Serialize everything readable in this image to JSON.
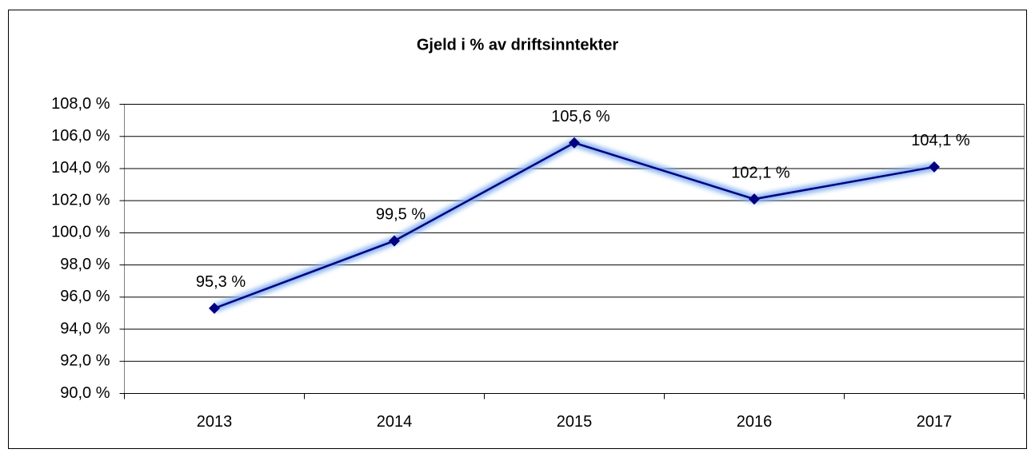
{
  "chart_data": {
    "type": "line",
    "title": "Gjeld i % av driftsinntekter",
    "categories": [
      "2013",
      "2014",
      "2015",
      "2016",
      "2017"
    ],
    "series": [
      {
        "color": "#000080",
        "values": [
          95.3,
          99.5,
          105.6,
          102.1,
          104.1
        ],
        "value_labels": [
          "95,3 %",
          "99,5 %",
          "105,6 %",
          "102,1 %",
          "104,1 %"
        ]
      }
    ],
    "ylim": [
      90,
      108
    ],
    "yticks": [
      {
        "value": 90,
        "label": "90,0 %"
      },
      {
        "value": 92,
        "label": "92,0 %"
      },
      {
        "value": 94,
        "label": "94,0 %"
      },
      {
        "value": 96,
        "label": "96,0 %"
      },
      {
        "value": 98,
        "label": "98,0 %"
      },
      {
        "value": 100,
        "label": "100,0 %"
      },
      {
        "value": 102,
        "label": "102,0 %"
      },
      {
        "value": 104,
        "label": "104,0 %"
      },
      {
        "value": 106,
        "label": "106,0 %"
      },
      {
        "value": 108,
        "label": "108,0 %"
      }
    ],
    "grid": true
  }
}
